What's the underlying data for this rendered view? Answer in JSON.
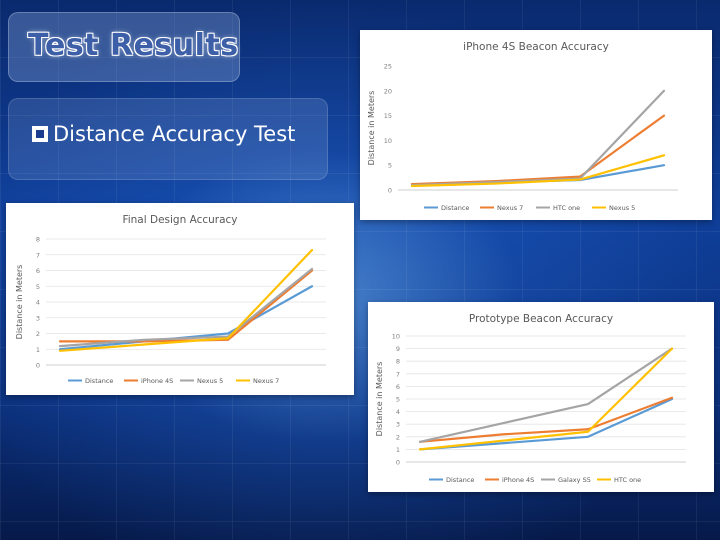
{
  "slide": {
    "title": "Test Results",
    "bullet": "Distance Accuracy Test"
  },
  "chart_data": [
    {
      "id": "final",
      "type": "line",
      "title": "Final Design Accuracy",
      "ylabel": "Distance in Meters",
      "xlabel": "",
      "ylim": [
        0,
        8
      ],
      "yticks": [
        0,
        1,
        2,
        3,
        4,
        5,
        6,
        7,
        8
      ],
      "x": [
        1,
        2,
        3,
        4
      ],
      "legend": "bottom",
      "grid": true,
      "series": [
        {
          "name": "Distance",
          "color": "#5b9bd5",
          "values": [
            1,
            1.5,
            2,
            5
          ]
        },
        {
          "name": "iPhone 4S",
          "color": "#ed7d31",
          "values": [
            1.5,
            1.5,
            1.6,
            6
          ]
        },
        {
          "name": "Nexus 5",
          "color": "#a5a5a5",
          "values": [
            1.2,
            1.6,
            1.8,
            6.1
          ]
        },
        {
          "name": "Nexus 7",
          "color": "#ffc000",
          "values": [
            0.9,
            1.3,
            1.7,
            7.3
          ]
        }
      ]
    },
    {
      "id": "iphone",
      "type": "line",
      "title": "iPhone 4S Beacon Accuracy",
      "ylabel": "Distance in Meters",
      "xlabel": "",
      "ylim": [
        0,
        25
      ],
      "yticks": [
        0,
        5,
        10,
        15,
        20,
        25
      ],
      "x": [
        1,
        2,
        3,
        4
      ],
      "legend": "bottom",
      "grid": false,
      "series": [
        {
          "name": "Distance",
          "color": "#5b9bd5",
          "values": [
            1,
            1.5,
            2,
            5
          ]
        },
        {
          "name": "Nexus 7",
          "color": "#ed7d31",
          "values": [
            1.2,
            1.8,
            2.7,
            15
          ]
        },
        {
          "name": "HTC one",
          "color": "#a5a5a5",
          "values": [
            1,
            1.6,
            2.3,
            20
          ]
        },
        {
          "name": "Nexus 5",
          "color": "#ffc000",
          "values": [
            0.8,
            1.3,
            2.1,
            7
          ]
        }
      ]
    },
    {
      "id": "prototype",
      "type": "line",
      "title": "Prototype Beacon Accuracy",
      "ylabel": "Distance in Meters",
      "xlabel": "",
      "ylim": [
        0,
        10
      ],
      "yticks": [
        0,
        1,
        2,
        3,
        4,
        5,
        6,
        7,
        8,
        9,
        10
      ],
      "x": [
        1,
        2,
        3,
        4
      ],
      "legend": "bottom",
      "grid": true,
      "series": [
        {
          "name": "Distance",
          "color": "#5b9bd5",
          "values": [
            1,
            1.5,
            2,
            5
          ]
        },
        {
          "name": "iPhone 4S",
          "color": "#ed7d31",
          "values": [
            1.6,
            2.2,
            2.6,
            5.1
          ]
        },
        {
          "name": "Galaxy S5",
          "color": "#a5a5a5",
          "values": [
            1.6,
            3.1,
            4.6,
            9
          ]
        },
        {
          "name": "HTC one",
          "color": "#ffc000",
          "values": [
            1,
            1.7,
            2.4,
            9
          ]
        }
      ]
    }
  ]
}
